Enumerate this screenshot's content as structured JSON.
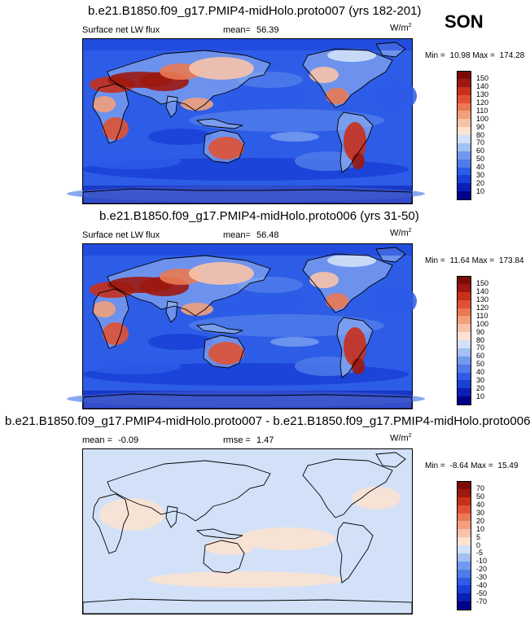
{
  "season": "SON",
  "panels": [
    {
      "title": "b.e21.B1850.f09_g17.PMIP4-midHolo.proto007 (yrs 182-201)",
      "variable": "Surface net LW flux",
      "mean_label": "mean=",
      "mean_value": "56.39",
      "units_base": "W/m",
      "units_exp": "2",
      "min_label": "Min =",
      "min_value": "10.98",
      "max_label": "Max =",
      "max_value": "174.28",
      "colorbar_levels": [
        "150",
        "140",
        "130",
        "120",
        "110",
        "100",
        "90",
        "80",
        "70",
        "60",
        "50",
        "40",
        "30",
        "20",
        "10"
      ]
    },
    {
      "title": "b.e21.B1850.f09_g17.PMIP4-midHolo.proto006 (yrs 31-50)",
      "variable": "Surface net LW flux",
      "mean_label": "mean=",
      "mean_value": "56.48",
      "units_base": "W/m",
      "units_exp": "2",
      "min_label": "Min =",
      "min_value": "11.64",
      "max_label": "Max =",
      "max_value": "173.84",
      "colorbar_levels": [
        "150",
        "140",
        "130",
        "120",
        "110",
        "100",
        "90",
        "80",
        "70",
        "60",
        "50",
        "40",
        "30",
        "20",
        "10"
      ]
    },
    {
      "title": "b.e21.B1850.f09_g17.PMIP4-midHolo.proto007 - b.e21.B1850.f09_g17.PMIP4-midHolo.proto006",
      "mean_label": "mean =",
      "mean_value": "-0.09",
      "rmse_label": "rmse =",
      "rmse_value": "1.47",
      "units_base": "W/m",
      "units_exp": "2",
      "min_label": "Min =",
      "min_value": "-8.64",
      "max_label": "Max =",
      "max_value": "15.49",
      "colorbar_levels": [
        "70",
        "50",
        "40",
        "30",
        "20",
        "10",
        "5",
        "0",
        "-5",
        "-10",
        "-20",
        "-30",
        "-40",
        "-50",
        "-70"
      ]
    }
  ],
  "chart_data": [
    {
      "type": "heatmap",
      "title": "b.e21.B1850.f09_g17.PMIP4-midHolo.proto007 (yrs 182-201)",
      "variable": "Surface net LW flux",
      "units": "W/m2",
      "mean": 56.39,
      "min": 10.98,
      "max": 174.28,
      "colorbar_levels": [
        10,
        20,
        30,
        40,
        50,
        60,
        70,
        80,
        90,
        100,
        110,
        120,
        130,
        140,
        150
      ],
      "colors": [
        "#00008b",
        "#0a1fb4",
        "#1a3fd6",
        "#2d5ce6",
        "#4f7ae9",
        "#7399ee",
        "#a3bff4",
        "#d2e1f8",
        "#fbe2d2",
        "#f7c3a8",
        "#f1a07c",
        "#e97a53",
        "#de5233",
        "#c8301b",
        "#9c1810",
        "#7a0c08"
      ]
    },
    {
      "type": "heatmap",
      "title": "b.e21.B1850.f09_g17.PMIP4-midHolo.proto006 (yrs 31-50)",
      "variable": "Surface net LW flux",
      "units": "W/m2",
      "mean": 56.48,
      "min": 11.64,
      "max": 173.84,
      "colorbar_levels": [
        10,
        20,
        30,
        40,
        50,
        60,
        70,
        80,
        90,
        100,
        110,
        120,
        130,
        140,
        150
      ],
      "colors": [
        "#00008b",
        "#0a1fb4",
        "#1a3fd6",
        "#2d5ce6",
        "#4f7ae9",
        "#7399ee",
        "#a3bff4",
        "#d2e1f8",
        "#fbe2d2",
        "#f7c3a8",
        "#f1a07c",
        "#e97a53",
        "#de5233",
        "#c8301b",
        "#9c1810",
        "#7a0c08"
      ]
    },
    {
      "type": "heatmap",
      "title": "b.e21.B1850.f09_g17.PMIP4-midHolo.proto007 - b.e21.B1850.f09_g17.PMIP4-midHolo.proto006",
      "units": "W/m2",
      "mean": -0.09,
      "rmse": 1.47,
      "min": -8.64,
      "max": 15.49,
      "colorbar_levels": [
        -70,
        -50,
        -40,
        -30,
        -20,
        -10,
        -5,
        0,
        5,
        10,
        20,
        30,
        40,
        50,
        70
      ],
      "colors": [
        "#00008b",
        "#0a1fb4",
        "#1a3fd6",
        "#2d5ce6",
        "#4f7ae9",
        "#7399ee",
        "#a3bff4",
        "#d2e1f8",
        "#fbe2d2",
        "#f7c3a8",
        "#f1a07c",
        "#e97a53",
        "#de5233",
        "#c8301b",
        "#9c1810",
        "#7a0c08"
      ]
    }
  ]
}
